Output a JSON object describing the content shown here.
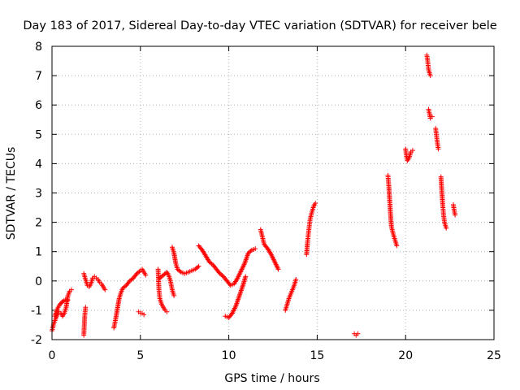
{
  "chart_data": {
    "type": "scatter",
    "title": "Day 183 of 2017, Sidereal Day-to-day VTEC variation (SDTVAR) for receiver bele",
    "xlabel": "GPS time / hours",
    "ylabel": "SDTVAR / TECUs",
    "xlim": [
      0,
      25
    ],
    "ylim": [
      -2,
      8
    ],
    "xticks": [
      "0",
      "5",
      "10",
      "15",
      "20",
      "25"
    ],
    "yticks": [
      "-2",
      "-1",
      "0",
      "1",
      "2",
      "3",
      "4",
      "5",
      "6",
      "7",
      "8"
    ],
    "grid": true,
    "marker": "+",
    "colors": {
      "series": "#ff0000",
      "grid": "#b0b0b0",
      "frame": "#000000"
    },
    "series": [
      {
        "name": "SDTVAR",
        "segments": [
          [
            [
              0.0,
              -1.7
            ],
            [
              0.1,
              -1.45
            ],
            [
              0.2,
              -1.3
            ],
            [
              0.3,
              -1.15
            ],
            [
              0.4,
              -1.05
            ],
            [
              0.5,
              -1.1
            ],
            [
              0.6,
              -1.2
            ],
            [
              0.7,
              -1.1
            ],
            [
              0.8,
              -0.9
            ],
            [
              0.9,
              -0.5
            ],
            [
              1.0,
              -0.35
            ],
            [
              1.1,
              -0.3
            ]
          ],
          [
            [
              0.15,
              -1.2
            ],
            [
              0.3,
              -0.95
            ],
            [
              0.45,
              -0.8
            ],
            [
              0.6,
              -0.7
            ],
            [
              0.75,
              -0.65
            ],
            [
              0.9,
              -0.65
            ]
          ],
          [
            [
              1.8,
              -1.85
            ],
            [
              1.85,
              -1.2
            ],
            [
              1.9,
              -0.9
            ]
          ],
          [
            [
              1.8,
              0.25
            ],
            [
              1.9,
              0.05
            ],
            [
              2.0,
              -0.15
            ],
            [
              2.1,
              -0.2
            ],
            [
              2.2,
              -0.1
            ],
            [
              2.3,
              0.1
            ],
            [
              2.4,
              0.15
            ],
            [
              2.5,
              0.1
            ],
            [
              2.6,
              0.05
            ],
            [
              2.7,
              -0.05
            ],
            [
              2.8,
              -0.1
            ],
            [
              2.9,
              -0.2
            ],
            [
              3.0,
              -0.3
            ]
          ],
          [
            [
              3.5,
              -1.6
            ],
            [
              3.6,
              -1.3
            ],
            [
              3.7,
              -0.95
            ],
            [
              3.8,
              -0.6
            ],
            [
              3.9,
              -0.4
            ],
            [
              4.0,
              -0.25
            ],
            [
              4.2,
              -0.15
            ],
            [
              4.4,
              0.0
            ],
            [
              4.6,
              0.1
            ],
            [
              4.8,
              0.25
            ],
            [
              5.0,
              0.35
            ],
            [
              5.1,
              0.4
            ],
            [
              5.2,
              0.3
            ],
            [
              5.3,
              0.2
            ]
          ],
          [
            [
              4.9,
              -1.05
            ],
            [
              5.0,
              -1.1
            ],
            [
              5.1,
              -1.1
            ],
            [
              5.2,
              -1.15
            ]
          ],
          [
            [
              6.0,
              0.4
            ],
            [
              6.05,
              -0.3
            ],
            [
              6.1,
              -0.6
            ],
            [
              6.2,
              -0.8
            ],
            [
              6.3,
              -0.9
            ],
            [
              6.4,
              -1.0
            ],
            [
              6.5,
              -1.05
            ]
          ],
          [
            [
              6.1,
              0.1
            ],
            [
              6.3,
              0.2
            ],
            [
              6.5,
              0.3
            ],
            [
              6.6,
              0.2
            ],
            [
              6.7,
              0.0
            ],
            [
              6.8,
              -0.3
            ],
            [
              6.9,
              -0.5
            ]
          ],
          [
            [
              6.8,
              1.15
            ],
            [
              6.9,
              0.95
            ],
            [
              7.0,
              0.6
            ],
            [
              7.1,
              0.4
            ],
            [
              7.3,
              0.3
            ],
            [
              7.5,
              0.25
            ],
            [
              7.7,
              0.3
            ],
            [
              7.9,
              0.35
            ],
            [
              8.1,
              0.4
            ],
            [
              8.3,
              0.5
            ]
          ],
          [
            [
              8.3,
              1.2
            ],
            [
              8.5,
              1.05
            ],
            [
              8.7,
              0.85
            ],
            [
              8.9,
              0.65
            ],
            [
              9.1,
              0.55
            ],
            [
              9.3,
              0.4
            ],
            [
              9.5,
              0.25
            ],
            [
              9.7,
              0.15
            ],
            [
              9.9,
              0.0
            ],
            [
              10.1,
              -0.15
            ],
            [
              10.3,
              -0.1
            ],
            [
              10.5,
              0.1
            ],
            [
              10.7,
              0.35
            ],
            [
              10.9,
              0.6
            ],
            [
              11.1,
              0.95
            ],
            [
              11.3,
              1.05
            ],
            [
              11.5,
              1.1
            ]
          ],
          [
            [
              9.8,
              -1.2
            ],
            [
              10.0,
              -1.25
            ],
            [
              10.2,
              -1.1
            ],
            [
              10.4,
              -0.85
            ],
            [
              10.6,
              -0.5
            ],
            [
              10.8,
              -0.15
            ],
            [
              10.95,
              0.15
            ]
          ],
          [
            [
              11.8,
              1.75
            ],
            [
              11.9,
              1.5
            ],
            [
              12.0,
              1.25
            ],
            [
              12.2,
              1.1
            ],
            [
              12.4,
              0.9
            ],
            [
              12.6,
              0.65
            ],
            [
              12.8,
              0.4
            ]
          ],
          [
            [
              13.2,
              -1.0
            ],
            [
              13.3,
              -0.8
            ],
            [
              13.4,
              -0.6
            ],
            [
              13.5,
              -0.45
            ],
            [
              13.6,
              -0.3
            ],
            [
              13.7,
              -0.15
            ],
            [
              13.8,
              0.05
            ]
          ],
          [
            [
              14.4,
              0.9
            ],
            [
              14.45,
              1.3
            ],
            [
              14.5,
              1.6
            ],
            [
              14.55,
              1.85
            ],
            [
              14.6,
              2.1
            ],
            [
              14.7,
              2.35
            ],
            [
              14.8,
              2.55
            ],
            [
              14.9,
              2.65
            ]
          ],
          [
            [
              17.1,
              -1.8
            ],
            [
              17.2,
              -1.85
            ],
            [
              17.3,
              -1.8
            ]
          ],
          [
            [
              19.0,
              3.6
            ],
            [
              19.05,
              3.25
            ],
            [
              19.1,
              2.75
            ],
            [
              19.15,
              2.25
            ],
            [
              19.2,
              1.85
            ],
            [
              19.3,
              1.6
            ],
            [
              19.4,
              1.4
            ],
            [
              19.5,
              1.2
            ]
          ],
          [
            [
              20.0,
              4.5
            ],
            [
              20.05,
              4.25
            ],
            [
              20.1,
              4.1
            ],
            [
              20.2,
              4.2
            ],
            [
              20.3,
              4.4
            ],
            [
              20.4,
              4.45
            ]
          ],
          [
            [
              21.2,
              7.7
            ],
            [
              21.25,
              7.5
            ],
            [
              21.3,
              7.2
            ],
            [
              21.4,
              7.0
            ]
          ],
          [
            [
              21.3,
              5.85
            ],
            [
              21.35,
              5.7
            ],
            [
              21.4,
              5.55
            ],
            [
              21.5,
              5.6
            ]
          ],
          [
            [
              21.7,
              5.2
            ],
            [
              21.75,
              4.95
            ],
            [
              21.8,
              4.7
            ],
            [
              21.85,
              4.5
            ]
          ],
          [
            [
              22.0,
              3.55
            ],
            [
              22.05,
              3.05
            ],
            [
              22.1,
              2.6
            ],
            [
              22.15,
              2.25
            ],
            [
              22.2,
              2.0
            ],
            [
              22.3,
              1.8
            ]
          ],
          [
            [
              22.7,
              2.6
            ],
            [
              22.75,
              2.4
            ],
            [
              22.8,
              2.25
            ]
          ]
        ]
      }
    ]
  }
}
